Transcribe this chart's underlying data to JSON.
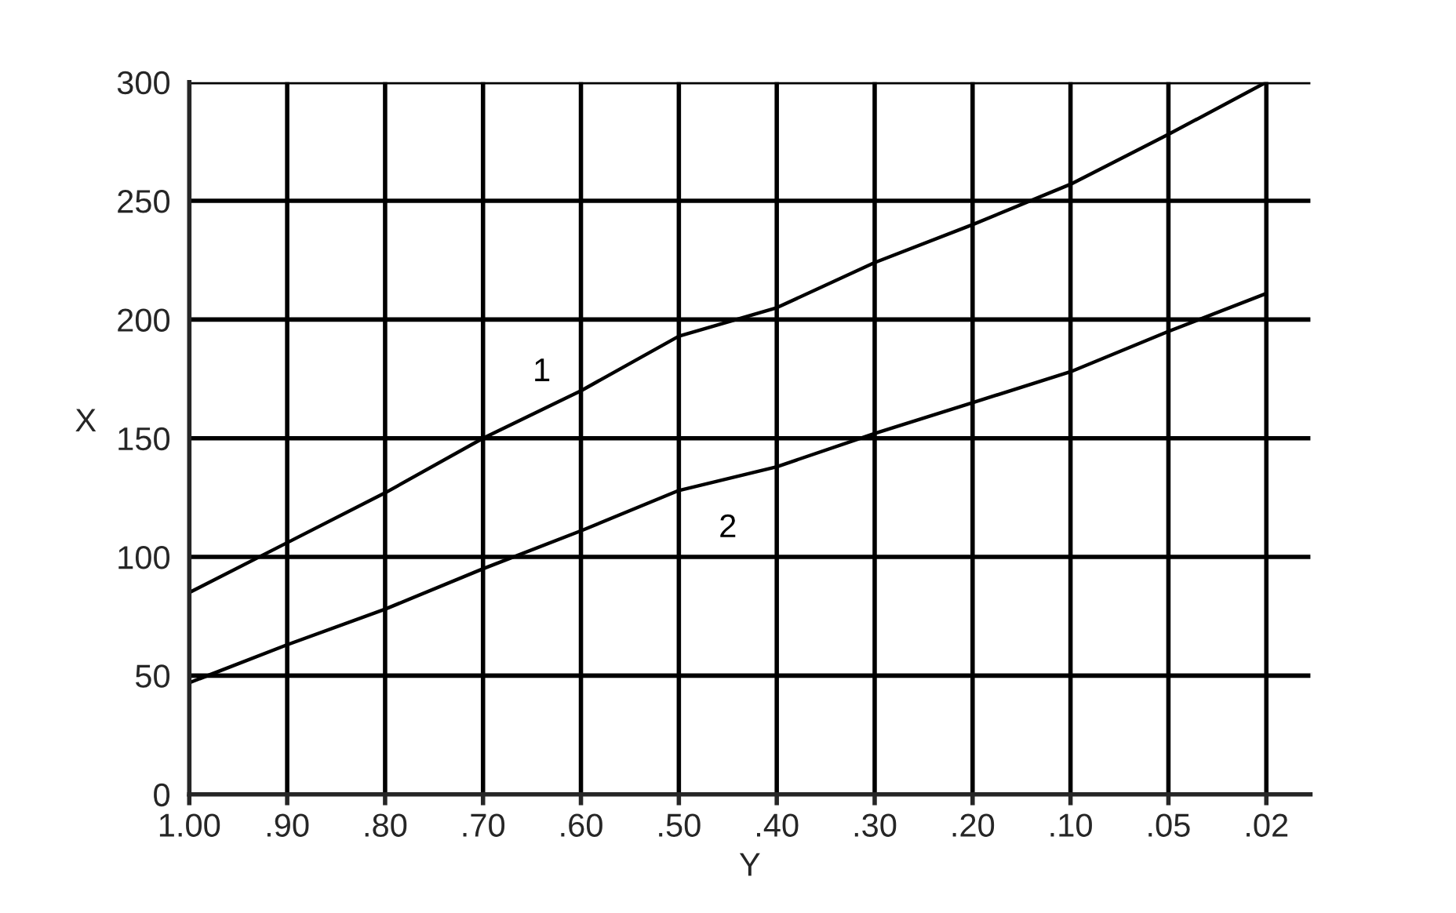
{
  "chart_data": {
    "type": "line",
    "xlabel": "Y",
    "ylabel": "X",
    "categories": [
      "1.00",
      ".90",
      ".80",
      ".70",
      ".60",
      ".50",
      ".40",
      ".30",
      ".20",
      ".10",
      ".05",
      ".02"
    ],
    "series": [
      {
        "name": "1",
        "color": "#000000",
        "values": [
          85,
          106,
          127,
          150,
          170,
          193,
          205,
          224,
          240,
          257,
          278,
          300
        ]
      },
      {
        "name": "2",
        "color": "#000000",
        "values": [
          47,
          63,
          78,
          95,
          111,
          128,
          138,
          152,
          165,
          178,
          195,
          211
        ]
      }
    ],
    "ylim": [
      0,
      300
    ],
    "yticks": [
      0,
      50,
      100,
      150,
      200,
      250,
      300
    ],
    "grid": true,
    "legend": false,
    "marker": "none",
    "line_style": "solid"
  }
}
